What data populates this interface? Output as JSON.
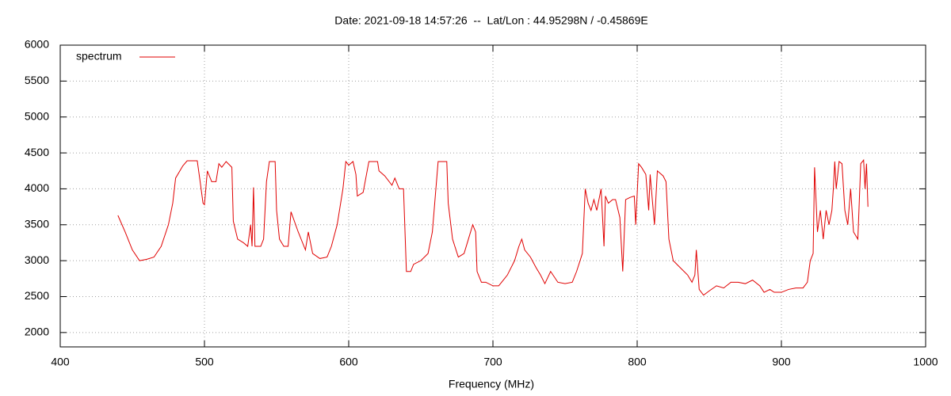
{
  "chart_data": {
    "type": "line",
    "title": "Date: 2021-09-18 14:57:26  --  Lat/Lon : 44.95298N / -0.45869E",
    "xlabel": "Frequency (MHz)",
    "xlim": [
      400,
      1000
    ],
    "xticks": [
      400,
      500,
      600,
      700,
      800,
      900,
      1000
    ],
    "ylim": [
      1800,
      6000
    ],
    "yticks": [
      2000,
      2500,
      3000,
      3500,
      4000,
      4500,
      5000,
      5500,
      6000
    ],
    "grid": true,
    "legend": "top-left",
    "x": [
      440,
      445,
      450,
      455,
      460,
      465,
      470,
      475,
      478,
      480,
      485,
      488,
      495,
      497,
      499,
      500,
      502,
      505,
      508,
      510,
      512,
      515,
      519,
      520,
      523,
      527,
      530,
      532,
      533,
      534,
      535,
      539,
      541,
      543,
      545,
      549,
      550,
      552,
      555,
      558,
      560,
      565,
      570,
      572,
      575,
      580,
      585,
      588,
      592,
      596,
      598,
      600,
      603,
      605,
      606,
      610,
      614,
      620,
      621,
      625,
      630,
      632,
      635,
      638,
      640,
      643,
      645,
      650,
      655,
      658,
      662,
      668,
      669,
      672,
      676,
      680,
      683,
      686,
      688,
      689,
      692,
      695,
      700,
      704,
      710,
      715,
      718,
      720,
      722,
      726,
      730,
      733,
      736,
      740,
      745,
      750,
      755,
      758,
      762,
      764,
      766,
      768,
      770,
      772,
      775,
      777,
      778,
      780,
      783,
      785,
      788,
      790,
      792,
      795,
      798,
      799,
      801,
      803,
      806,
      808,
      809,
      812,
      814,
      818,
      820,
      822,
      825,
      830,
      835,
      838,
      840,
      841,
      843,
      846,
      850,
      855,
      860,
      865,
      870,
      875,
      880,
      885,
      888,
      892,
      895,
      900,
      905,
      910,
      915,
      918,
      920,
      922,
      923,
      925,
      927,
      929,
      931,
      933,
      935,
      936,
      937,
      938,
      940,
      942,
      944,
      946,
      948,
      950,
      953,
      955,
      957,
      958,
      959,
      960
    ],
    "series": [
      {
        "name": "spectrum",
        "color": "#e00000",
        "values": [
          3630,
          3400,
          3150,
          3000,
          3020,
          3050,
          3200,
          3500,
          3800,
          4150,
          4320,
          4390,
          4390,
          4100,
          3800,
          3780,
          4250,
          4100,
          4100,
          4350,
          4300,
          4380,
          4300,
          3550,
          3300,
          3250,
          3200,
          3500,
          3200,
          4020,
          3200,
          3200,
          3300,
          4100,
          4380,
          4380,
          3700,
          3300,
          3200,
          3200,
          3680,
          3400,
          3150,
          3400,
          3100,
          3030,
          3050,
          3200,
          3500,
          4000,
          4380,
          4330,
          4380,
          4200,
          3900,
          3950,
          4380,
          4380,
          4250,
          4180,
          4050,
          4150,
          4000,
          4000,
          2850,
          2850,
          2950,
          3000,
          3100,
          3400,
          4380,
          4380,
          3800,
          3300,
          3050,
          3100,
          3300,
          3500,
          3400,
          2850,
          2700,
          2700,
          2650,
          2650,
          2800,
          3000,
          3200,
          3300,
          3150,
          3050,
          2900,
          2800,
          2680,
          2850,
          2700,
          2680,
          2700,
          2850,
          3100,
          4000,
          3800,
          3700,
          3850,
          3700,
          4000,
          3200,
          3900,
          3800,
          3850,
          3850,
          3600,
          2850,
          3850,
          3880,
          3900,
          3500,
          4350,
          4300,
          4200,
          3700,
          4200,
          3500,
          4250,
          4180,
          4100,
          3300,
          3000,
          2900,
          2800,
          2700,
          2800,
          3150,
          2600,
          2520,
          2580,
          2650,
          2620,
          2700,
          2700,
          2680,
          2730,
          2650,
          2560,
          2600,
          2560,
          2560,
          2600,
          2620,
          2620,
          2700,
          3000,
          3100,
          4300,
          3400,
          3700,
          3300,
          3700,
          3500,
          3700,
          4000,
          4380,
          4000,
          4380,
          4350,
          3700,
          3500,
          4000,
          3400,
          3300,
          4350,
          4400,
          4000,
          4350,
          3750
        ]
      }
    ]
  }
}
